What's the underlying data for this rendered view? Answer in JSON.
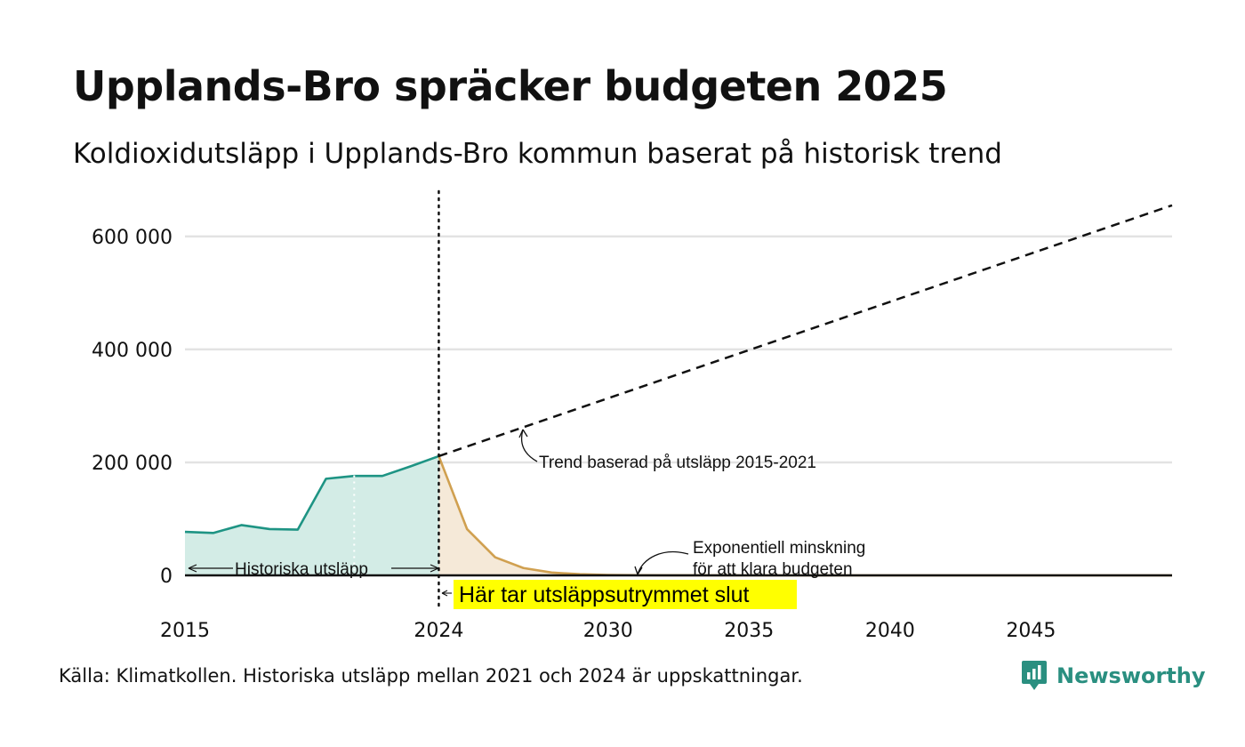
{
  "header": {
    "title": "Upplands-Bro spräcker budgeten 2025",
    "subtitle": "Koldioxidutsläpp i Upplands-Bro kommun baserat på historisk trend"
  },
  "footer": {
    "source": "Källa: Klimatkollen. Historiska utsläpp mellan 2021 och 2024 är uppskattningar.",
    "brand": "Newsworthy"
  },
  "chart_data": {
    "type": "area",
    "xlim": [
      2015,
      2050
    ],
    "ylim": [
      0,
      680000
    ],
    "x_ticks": [
      {
        "value": 2015,
        "label": "2015"
      },
      {
        "value": 2024,
        "label": "2024"
      },
      {
        "value": 2030,
        "label": "2030"
      },
      {
        "value": 2035,
        "label": "2035"
      },
      {
        "value": 2040,
        "label": "2040"
      },
      {
        "value": 2045,
        "label": "2045"
      }
    ],
    "y_ticks": [
      {
        "value": 0,
        "label": "0"
      },
      {
        "value": 200000,
        "label": "200 000"
      },
      {
        "value": 400000,
        "label": "400 000"
      },
      {
        "value": 600000,
        "label": "600 000"
      }
    ],
    "grid": true,
    "series": [
      {
        "key": "historical",
        "color": "#1e9484",
        "fill": "#d3ece6",
        "points": [
          [
            2015,
            77000
          ],
          [
            2016,
            75000
          ],
          [
            2017,
            89000
          ],
          [
            2018,
            82000
          ],
          [
            2019,
            81000
          ],
          [
            2020,
            171000
          ],
          [
            2021,
            176000
          ],
          [
            2022,
            176000
          ],
          [
            2023,
            193000
          ],
          [
            2024,
            211000
          ]
        ]
      },
      {
        "key": "budget",
        "color": "#d0a050",
        "fill": "#f5e9d8",
        "points": [
          [
            2024,
            211000
          ],
          [
            2025,
            82000
          ],
          [
            2026,
            32000
          ],
          [
            2027,
            13000
          ],
          [
            2028,
            5000
          ],
          [
            2029,
            2000
          ],
          [
            2030,
            800
          ],
          [
            2031,
            300
          ],
          [
            2032,
            100
          ],
          [
            2035,
            0
          ],
          [
            2040,
            0
          ],
          [
            2045,
            0
          ],
          [
            2050,
            0
          ]
        ]
      },
      {
        "key": "trend",
        "color": "#111111",
        "dashed": true,
        "points": [
          [
            2024,
            211000
          ],
          [
            2050,
            655000
          ]
        ]
      }
    ],
    "estimate_marker_year": 2021,
    "budget_end_year": 2024,
    "annotations": {
      "historical": "Historiska utsläpp",
      "trend": "Trend baserad på utsläpp 2015-2021",
      "decline_line1": "Exponentiell minskning",
      "decline_line2": "för att klara budgeten",
      "budget_end": "Här tar utsläppsutrymmet slut"
    },
    "colors": {
      "highlight": "#ffff00",
      "grid": "#e3e3e3",
      "brand": "#2a8f80"
    }
  }
}
